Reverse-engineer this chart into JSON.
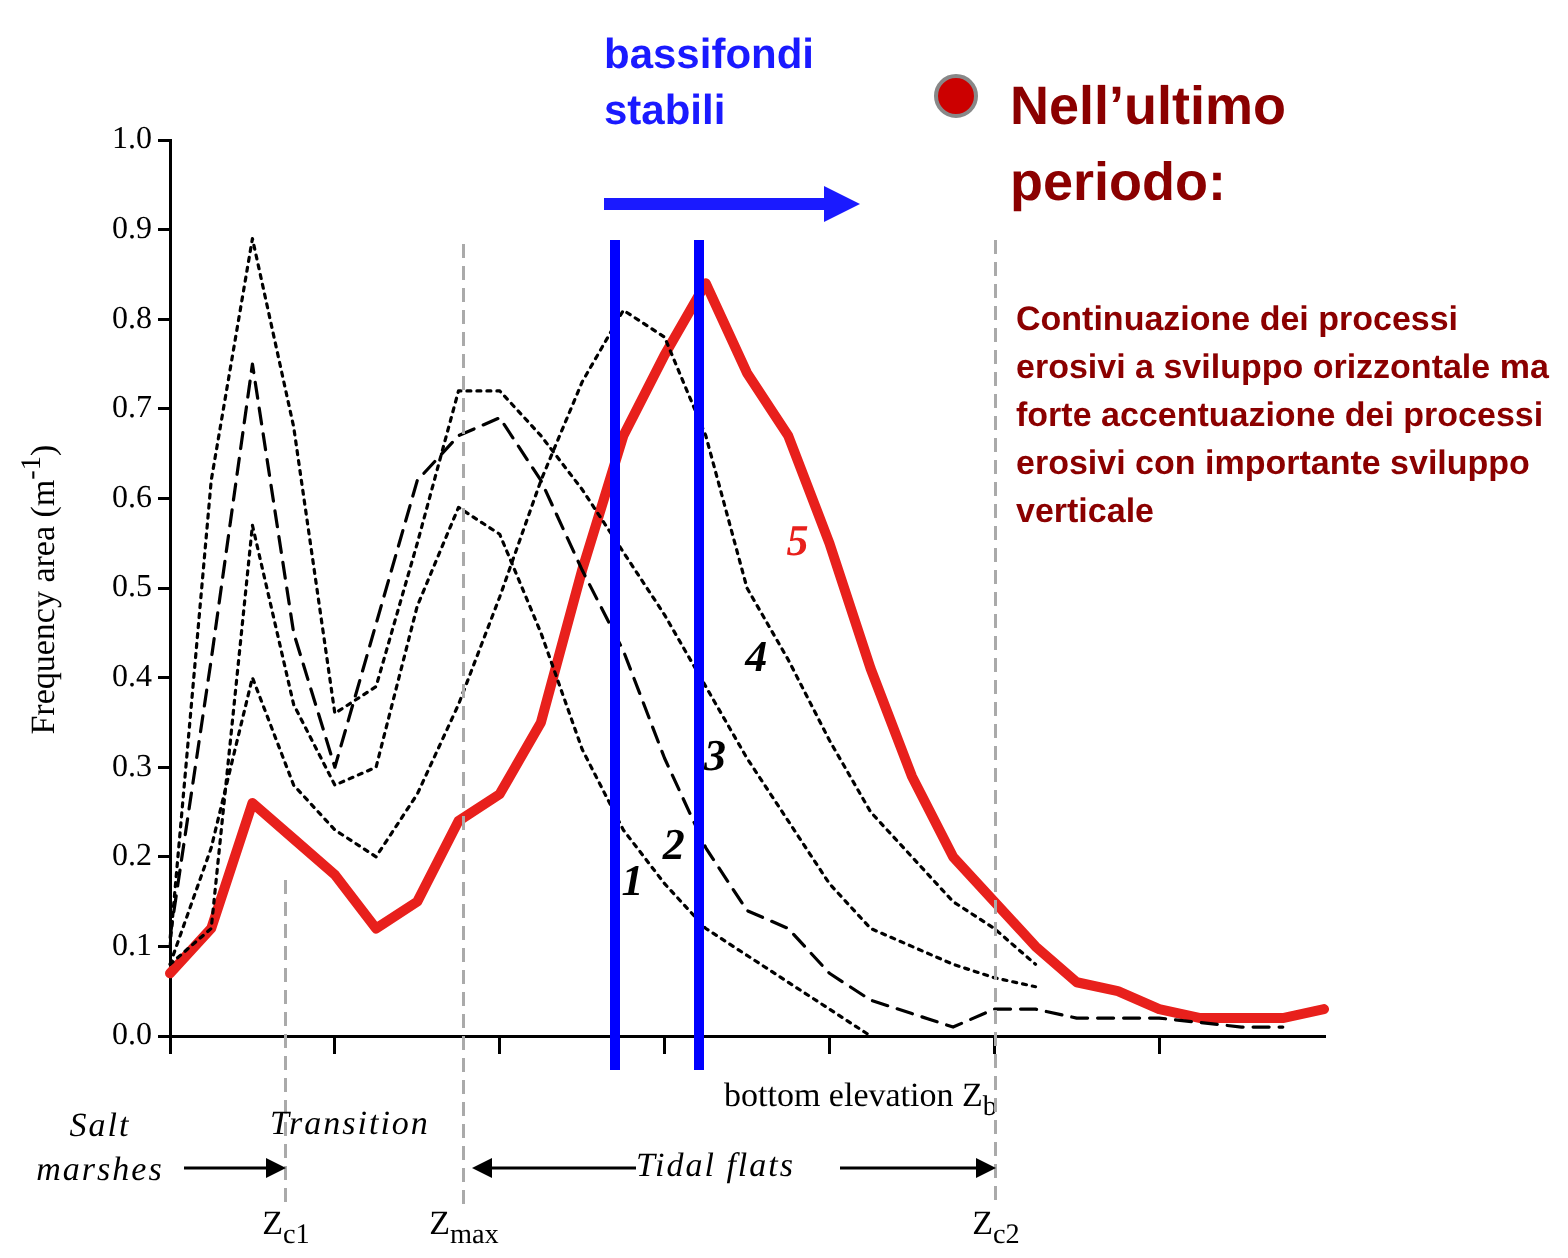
{
  "chart_data": {
    "type": "line",
    "xlabel": "bottom elevation Z$_{b}$",
    "ylabel": "Frequency area (m$^{-1}$)",
    "categories": [
      null,
      null,
      null,
      null,
      null,
      null,
      null,
      null,
      null,
      null,
      null,
      null,
      null,
      null,
      null,
      null,
      null,
      null,
      null,
      null,
      null,
      null,
      null,
      null,
      null,
      null,
      null,
      null,
      null
    ],
    "ylim": [
      0,
      1
    ],
    "yticks": [
      {
        "value": 0,
        "label": "0.0"
      },
      {
        "value": 0.1,
        "label": "0.1"
      },
      {
        "value": 0.2,
        "label": "0.2"
      },
      {
        "value": 0.3,
        "label": "0.3"
      },
      {
        "value": 0.4,
        "label": "0.4"
      },
      {
        "value": 0.5,
        "label": "0.5"
      },
      {
        "value": 0.6,
        "label": "0.6"
      },
      {
        "value": 0.7,
        "label": "0.7"
      },
      {
        "value": 0.8,
        "label": "0.8"
      },
      {
        "value": 0.9,
        "label": "0.9"
      },
      {
        "value": 1,
        "label": "1.0"
      }
    ],
    "tick_labels": "y",
    "grid": false,
    "marker": "none",
    "series": [
      {
        "name": "1",
        "color": "#000000",
        "line_style": "dotted",
        "values": [
          0.08,
          0.12,
          0.57,
          0.37,
          0.28,
          0.3,
          0.48,
          0.59,
          0.56,
          0.45,
          0.32,
          0.23,
          0.17,
          0.12,
          0.09,
          0.06,
          0.03,
          0,
          null,
          null,
          null,
          null,
          null,
          null,
          null,
          null,
          null,
          null,
          null
        ]
      },
      {
        "name": "2",
        "color": "#000000",
        "line_style": "dashed",
        "values": [
          0.11,
          0.42,
          0.75,
          0.45,
          0.3,
          0.46,
          0.62,
          0.67,
          0.69,
          0.62,
          0.52,
          0.43,
          0.31,
          0.21,
          0.14,
          0.12,
          0.07,
          0.04,
          0.025,
          0.01,
          0.03,
          0.03,
          0.02,
          0.02,
          0.02,
          0.015,
          0.01,
          0.01,
          null
        ]
      },
      {
        "name": "3",
        "color": "#000000",
        "line_style": "dotted",
        "values": [
          0.1,
          0.62,
          0.89,
          0.68,
          0.36,
          0.39,
          0.55,
          0.72,
          0.72,
          0.67,
          0.61,
          0.54,
          0.47,
          0.39,
          0.31,
          0.24,
          0.17,
          0.12,
          0.1,
          0.08,
          0.065,
          0.055,
          null,
          null,
          null,
          null,
          null,
          null,
          null
        ]
      },
      {
        "name": "4",
        "color": "#000000",
        "line_style": "dotted",
        "values": [
          0.08,
          0.21,
          0.4,
          0.28,
          0.23,
          0.2,
          0.27,
          0.37,
          0.49,
          0.62,
          0.73,
          0.81,
          0.78,
          0.67,
          0.5,
          0.42,
          0.33,
          0.25,
          0.2,
          0.15,
          0.12,
          0.08,
          null,
          null,
          null,
          null,
          null,
          null,
          null
        ]
      },
      {
        "name": "5",
        "color": "#e8201c",
        "line_style": "solid",
        "values": [
          0.07,
          0.12,
          0.26,
          0.22,
          0.18,
          0.12,
          0.15,
          0.24,
          0.27,
          0.35,
          0.52,
          0.67,
          0.76,
          0.84,
          0.74,
          0.67,
          0.55,
          0.41,
          0.29,
          0.2,
          0.15,
          0.1,
          0.06,
          0.05,
          0.03,
          0.02,
          0.02,
          0.02,
          0.03
        ]
      }
    ],
    "annotations": [
      "bassifondi stabili",
      "Nell’ultimo periodo:",
      "Continuazione dei processi erosivi a sviluppo orizzontale ma forte accentuazione dei processi erosivi con importante sviluppo verticale",
      "Salt marshes",
      "Transition",
      "Tidal flats",
      "Z$_{c1}$",
      "Z$_{max}$",
      "Z$_{c2}$"
    ]
  }
}
